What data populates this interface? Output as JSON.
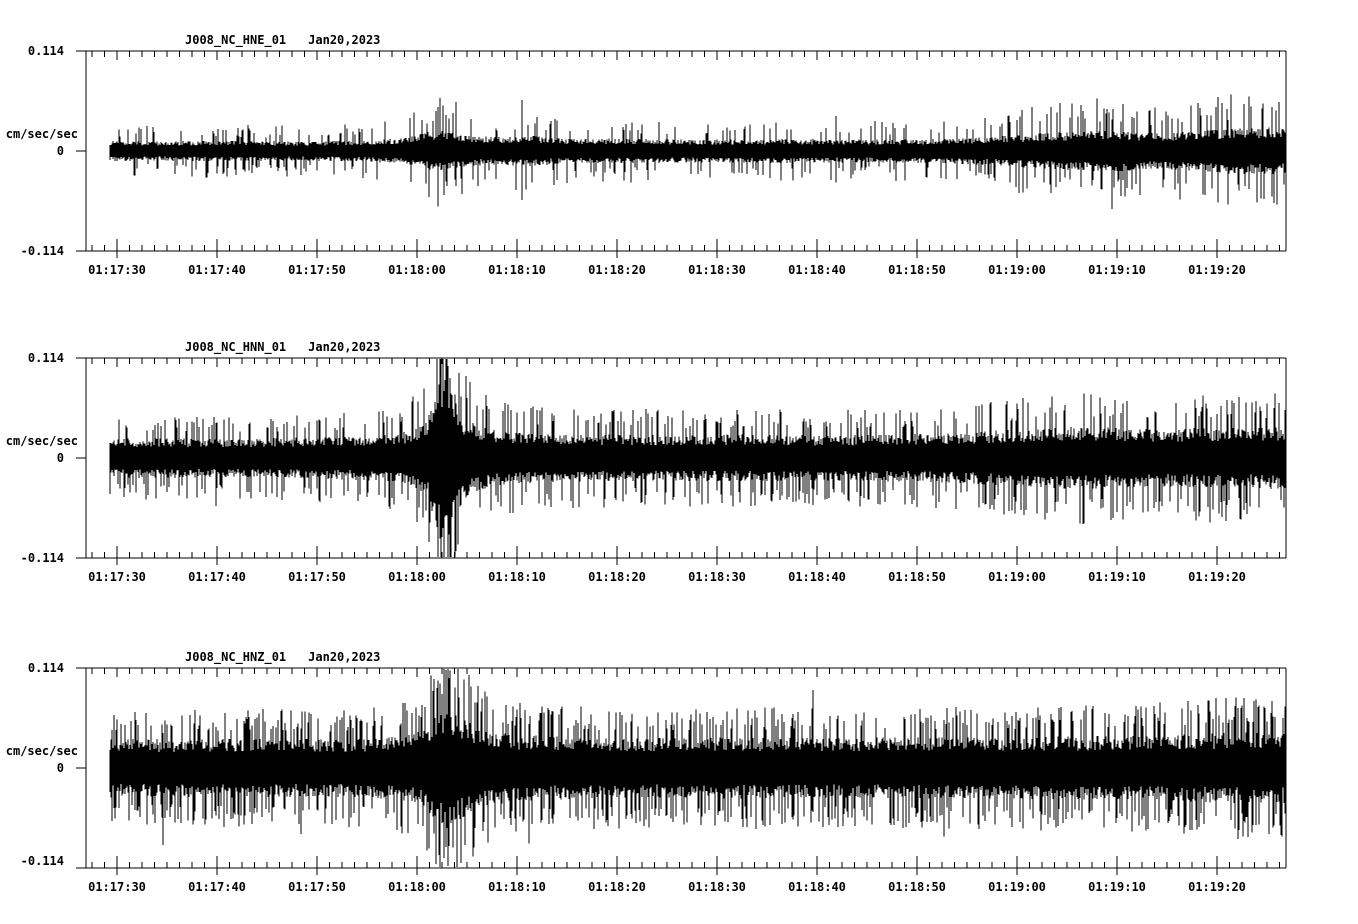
{
  "colors": {
    "background": "#ffffff",
    "trace": "#000000",
    "axis": "#000000",
    "text": "#000000"
  },
  "axis": {
    "y_max_label": "0.114",
    "y_zero_label": "0",
    "y_min_label": "-0.114",
    "unit_label": "cm/sec/sec",
    "x_tick_labels": [
      "01:17:30",
      "01:17:40",
      "01:17:50",
      "01:18:00",
      "01:18:10",
      "01:18:20",
      "01:18:30",
      "01:18:40",
      "01:18:50",
      "01:19:00",
      "01:19:10",
      "01:19:20"
    ]
  },
  "chart_data": [
    {
      "type": "line",
      "station": "J008_NC_HNE_01",
      "date": "Jan20,2023",
      "ylabel": "cm/sec/sec",
      "ylim": [
        -0.114,
        0.114
      ],
      "y_tick_labels": [
        "0.114",
        "0",
        "-0.114"
      ],
      "x_tick_labels": [
        "01:17:30",
        "01:17:40",
        "01:17:50",
        "01:18:00",
        "01:18:10",
        "01:18:20",
        "01:18:30",
        "01:18:40",
        "01:18:50",
        "01:19:00",
        "01:19:10",
        "01:19:20"
      ],
      "x_tick_interval_seconds": 10,
      "envelope": {
        "t": [
          0,
          6,
          14,
          22,
          28,
          32,
          34,
          35,
          36.5,
          38.5,
          41,
          44,
          48,
          55,
          62,
          70,
          78,
          85,
          90,
          94,
          99,
          103,
          107,
          111,
          115,
          118,
          120
        ],
        "amp": [
          0.012,
          0.011,
          0.012,
          0.011,
          0.012,
          0.015,
          0.021,
          0.024,
          0.022,
          0.017,
          0.016,
          0.018,
          0.014,
          0.014,
          0.013,
          0.014,
          0.013,
          0.014,
          0.016,
          0.019,
          0.022,
          0.024,
          0.02,
          0.023,
          0.026,
          0.027,
          0.025
        ]
      },
      "spikes": [
        {
          "t": 35.2,
          "up": 0.05,
          "down": 0.063
        },
        {
          "t": 37.0,
          "up": 0.056,
          "down": 0.04
        },
        {
          "t": 43.6,
          "up": 0.058,
          "down": 0.056
        },
        {
          "t": 75.0,
          "up": 0.04,
          "down": 0.036
        },
        {
          "t": 96.5,
          "up": 0.05,
          "down": 0.048
        },
        {
          "t": 102.6,
          "up": 0.036,
          "down": 0.066
        },
        {
          "t": 116.3,
          "up": 0.062,
          "down": 0.04
        },
        {
          "t": 118.6,
          "up": 0.05,
          "down": 0.052
        }
      ],
      "noise": {
        "spike_prob": 0.16,
        "gain_min": 1.35,
        "gain_max": 2.6
      },
      "seed": 1234
    },
    {
      "type": "line",
      "station": "J008_NC_HNN_01",
      "date": "Jan20,2023",
      "ylabel": "cm/sec/sec",
      "ylim": [
        -0.114,
        0.114
      ],
      "y_tick_labels": [
        "0.114",
        "0",
        "-0.114"
      ],
      "x_tick_labels": [
        "01:17:30",
        "01:17:40",
        "01:17:50",
        "01:18:00",
        "01:18:10",
        "01:18:20",
        "01:18:30",
        "01:18:40",
        "01:18:50",
        "01:19:00",
        "01:19:10",
        "01:19:20"
      ],
      "x_tick_interval_seconds": 10,
      "envelope": {
        "t": [
          0,
          8,
          16,
          24,
          29,
          32,
          34,
          35.3,
          35.9,
          36.6,
          37.6,
          39,
          41,
          45,
          50,
          58,
          66,
          74,
          82,
          88,
          92,
          96,
          100,
          104,
          108,
          112,
          116,
          120
        ],
        "amp": [
          0.022,
          0.023,
          0.022,
          0.024,
          0.026,
          0.03,
          0.04,
          0.09,
          0.108,
          0.085,
          0.05,
          0.038,
          0.032,
          0.028,
          0.027,
          0.026,
          0.027,
          0.026,
          0.027,
          0.029,
          0.032,
          0.034,
          0.036,
          0.034,
          0.033,
          0.035,
          0.034,
          0.036
        ]
      },
      "spikes": [
        {
          "t": 13.0,
          "up": 0.04,
          "down": 0.055
        },
        {
          "t": 35.5,
          "up": 0.114,
          "down": 0.095
        },
        {
          "t": 36.2,
          "up": 0.105,
          "down": 0.113
        },
        {
          "t": 56.0,
          "up": 0.056,
          "down": 0.042
        },
        {
          "t": 87.0,
          "up": 0.045,
          "down": 0.058
        },
        {
          "t": 107.0,
          "up": 0.052,
          "down": 0.05
        }
      ],
      "noise": {
        "spike_prob": 0.22,
        "gain_min": 1.3,
        "gain_max": 2.1
      },
      "seed": 5678
    },
    {
      "type": "line",
      "station": "J008_NC_HNZ_01",
      "date": "Jan20,2023",
      "ylabel": "cm/sec/sec",
      "ylim": [
        -0.114,
        0.114
      ],
      "y_tick_labels": [
        "0.114",
        "0",
        "-0.114"
      ],
      "x_tick_labels": [
        "01:17:30",
        "01:17:40",
        "01:17:50",
        "01:18:00",
        "01:18:10",
        "01:18:20",
        "01:18:30",
        "01:18:40",
        "01:18:50",
        "01:19:00",
        "01:19:10",
        "01:19:20"
      ],
      "x_tick_interval_seconds": 10,
      "envelope": {
        "t": [
          0,
          8,
          16,
          24,
          30,
          33,
          35,
          36,
          37.5,
          39.5,
          43,
          50,
          58,
          66,
          74,
          82,
          90,
          98,
          106,
          112,
          116,
          120
        ],
        "amp": [
          0.034,
          0.033,
          0.034,
          0.033,
          0.035,
          0.04,
          0.058,
          0.07,
          0.06,
          0.046,
          0.038,
          0.035,
          0.034,
          0.035,
          0.034,
          0.035,
          0.035,
          0.036,
          0.037,
          0.039,
          0.041,
          0.04
        ]
      },
      "spikes": [
        {
          "t": 7.7,
          "up": 0.04,
          "down": 0.088
        },
        {
          "t": 21.5,
          "up": 0.045,
          "down": 0.075
        },
        {
          "t": 36.0,
          "up": 0.1,
          "down": 0.09
        },
        {
          "t": 44.3,
          "up": 0.05,
          "down": 0.086
        },
        {
          "t": 72.7,
          "up": 0.089,
          "down": 0.05
        },
        {
          "t": 85.8,
          "up": 0.055,
          "down": 0.078
        },
        {
          "t": 113.0,
          "up": 0.08,
          "down": 0.055
        }
      ],
      "noise": {
        "spike_prob": 0.3,
        "gain_min": 1.25,
        "gain_max": 2.0
      },
      "seed": 9012
    }
  ]
}
